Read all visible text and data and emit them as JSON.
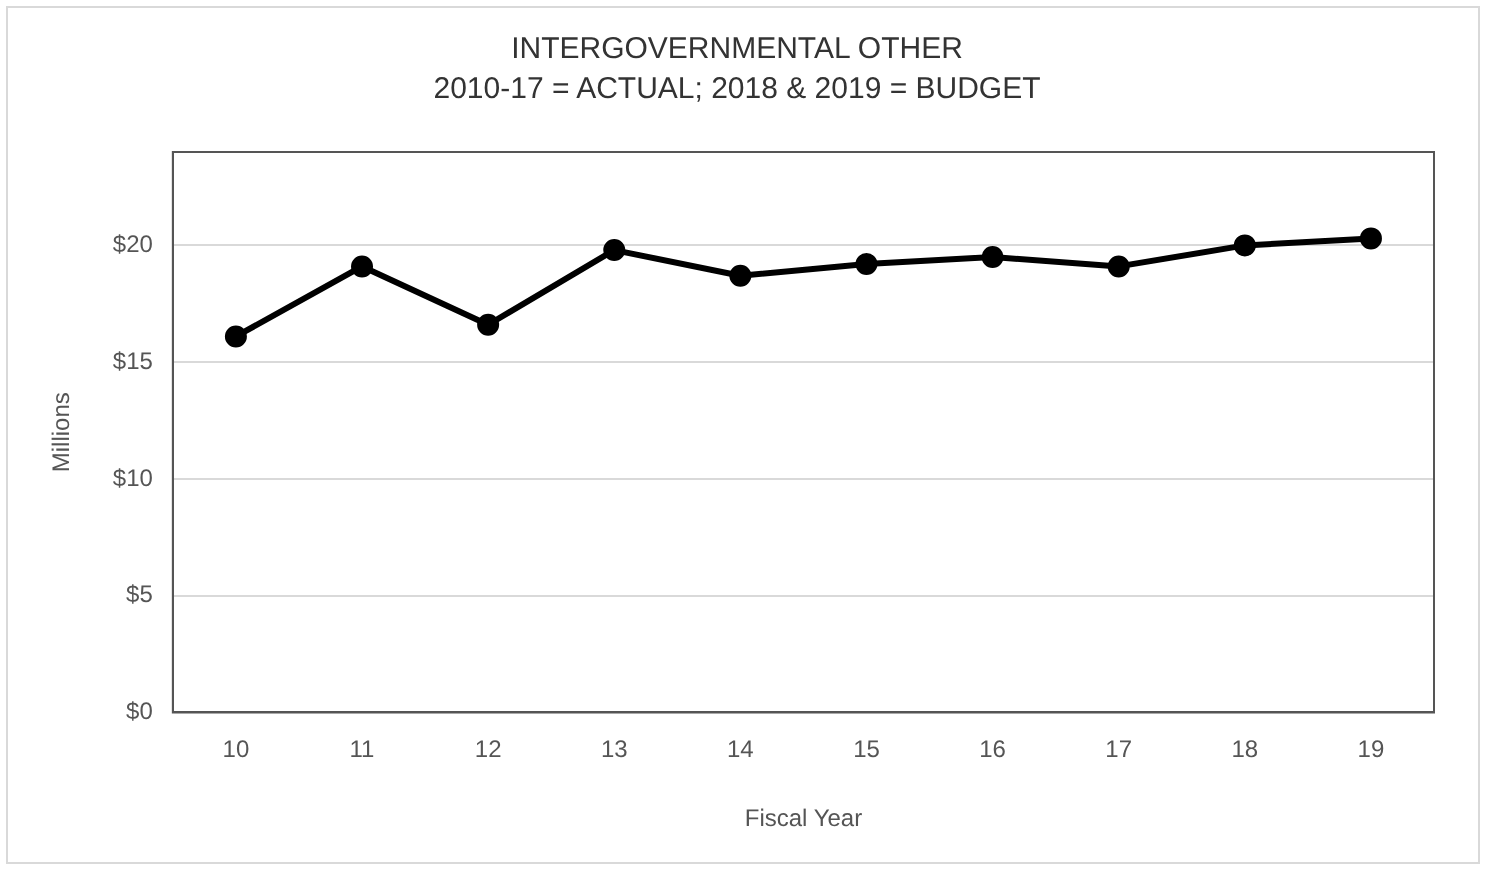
{
  "chart_data": {
    "type": "line",
    "title": "INTERGOVERNMENTAL OTHER",
    "subtitle": "2010-17 = ACTUAL; 2018 & 2019 = BUDGET",
    "xlabel": "Fiscal Year",
    "ylabel": "Millions",
    "categories": [
      "10",
      "11",
      "12",
      "13",
      "14",
      "15",
      "16",
      "17",
      "18",
      "19"
    ],
    "series": [
      {
        "color": "#000000",
        "values": [
          16.1,
          19.1,
          16.6,
          19.8,
          18.7,
          19.2,
          19.5,
          19.1,
          20.0,
          20.3
        ]
      }
    ],
    "ylim": [
      0,
      24
    ],
    "yticks": [
      {
        "value": 0,
        "label": "$0"
      },
      {
        "value": 5,
        "label": "$5"
      },
      {
        "value": 10,
        "label": "$10"
      },
      {
        "value": 15,
        "label": "$15"
      },
      {
        "value": 20,
        "label": "$20"
      }
    ],
    "grid": "y",
    "legend": false,
    "marker": "circle",
    "line_style": "solid"
  }
}
